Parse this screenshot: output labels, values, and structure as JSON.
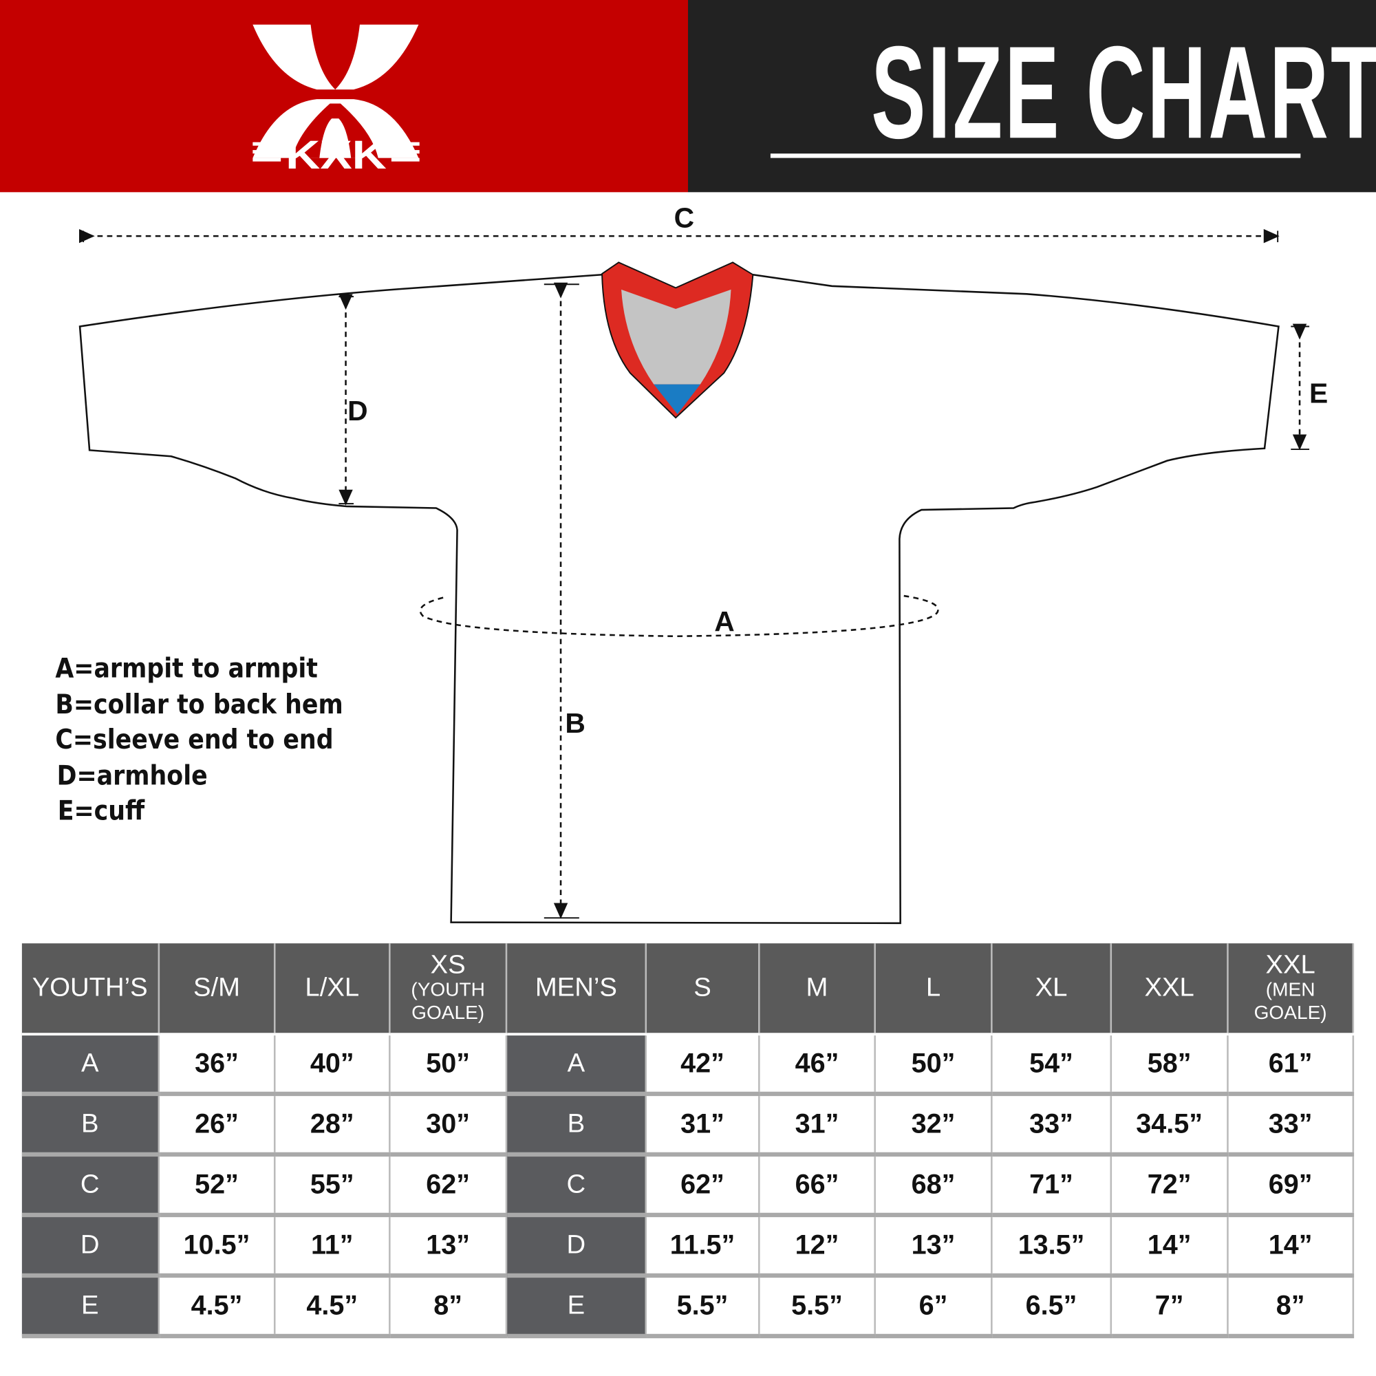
{
  "header": {
    "brand": "KXK",
    "title": "SIZE CHART",
    "colors": {
      "brand_red": "#c40000",
      "dark": "#222222",
      "collar_red": "#dd2a22",
      "collar_gray": "#c4c4c4",
      "collar_blue": "#1a7cc4"
    }
  },
  "diagram": {
    "labels": {
      "a": "A",
      "b": "B",
      "c": "C",
      "d": "D",
      "e": "E"
    },
    "legend": [
      "A=armpit to armpit",
      "B=collar to back hem",
      "C=sleeve end to end",
      "D=armhole",
      "E=cuff"
    ]
  },
  "table": {
    "headers": [
      {
        "main": "YOUTH’S"
      },
      {
        "main": "S/M"
      },
      {
        "main": "L/XL"
      },
      {
        "main": "XS",
        "sub1": "(YOUTH",
        "sub2": "GOALE)"
      },
      {
        "main": "MEN’S"
      },
      {
        "main": "S"
      },
      {
        "main": "M"
      },
      {
        "main": "L"
      },
      {
        "main": "XL"
      },
      {
        "main": "XXL"
      },
      {
        "main": "XXL",
        "sub1": "(MEN",
        "sub2": "GOALE)"
      }
    ],
    "rows": [
      {
        "label": "A",
        "youth": [
          "36”",
          "40”",
          "50”"
        ],
        "men_label": "A",
        "men": [
          "42”",
          "46”",
          "50”",
          "54”",
          "58”",
          "61”"
        ]
      },
      {
        "label": "B",
        "youth": [
          "26”",
          "28”",
          "30”"
        ],
        "men_label": "B",
        "men": [
          "31”",
          "31”",
          "32”",
          "33”",
          "34.5”",
          "33”"
        ]
      },
      {
        "label": "C",
        "youth": [
          "52”",
          "55”",
          "62”"
        ],
        "men_label": "C",
        "men": [
          "62”",
          "66”",
          "68”",
          "71”",
          "72”",
          "69”"
        ]
      },
      {
        "label": "D",
        "youth": [
          "10.5”",
          "11”",
          "13”"
        ],
        "men_label": "D",
        "men": [
          "11.5”",
          "12”",
          "13”",
          "13.5”",
          "14”",
          "14”"
        ]
      },
      {
        "label": "E",
        "youth": [
          "4.5”",
          "4.5”",
          "8”"
        ],
        "men_label": "E",
        "men": [
          "5.5”",
          "5.5”",
          "6”",
          "6.5”",
          "7”",
          "8”"
        ]
      }
    ]
  }
}
